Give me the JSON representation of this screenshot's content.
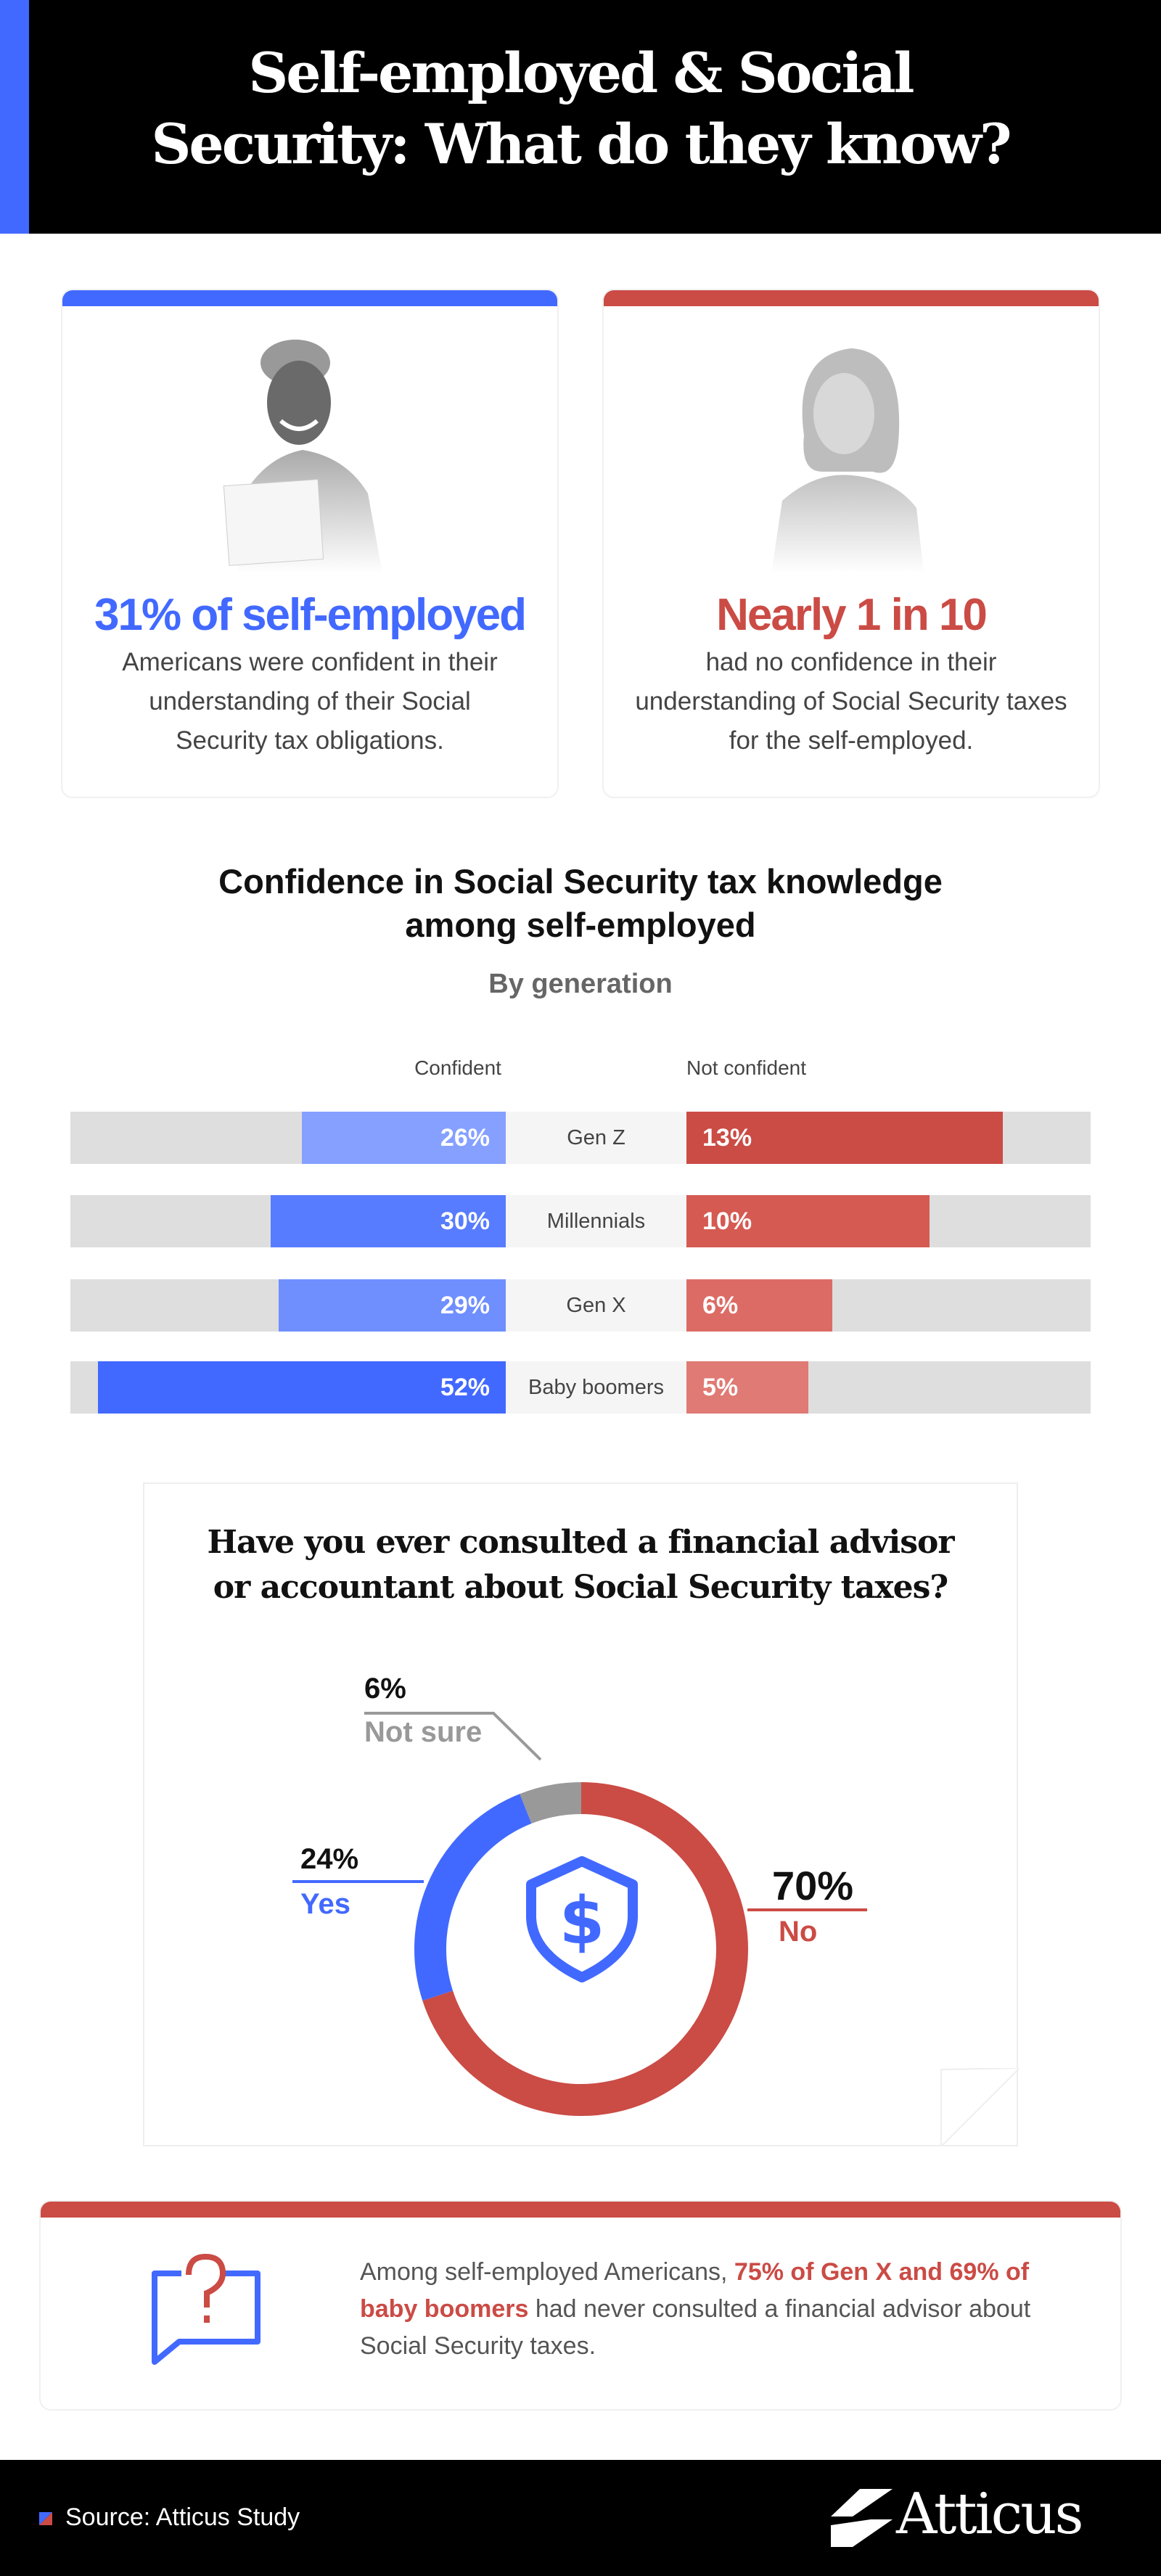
{
  "header": {
    "title_line1": "Self-employed & Social",
    "title_line2": "Security: What do they know?"
  },
  "cards": [
    {
      "stat": "31% of self-employed",
      "lines": [
        "Americans were confident in their",
        "understanding of their Social",
        "Security tax obligations."
      ],
      "color": "#4269ff"
    },
    {
      "stat": "Nearly 1 in 10",
      "lines": [
        "had no confidence in their",
        "understanding of Social Security taxes",
        "for the self-employed."
      ],
      "color": "#cb4b45"
    }
  ],
  "chart_data": [
    {
      "type": "bar",
      "title": "Confidence in Social Security tax knowledge among self-employed",
      "subtitle": "By generation",
      "categories": [
        "Gen Z",
        "Millennials",
        "Gen X",
        "Baby boomers"
      ],
      "series": [
        {
          "name": "Confident",
          "values": [
            26,
            30,
            29,
            52
          ],
          "labels": [
            "26%",
            "30%",
            "29%",
            "52%"
          ],
          "colors": [
            "#85a0ff",
            "#587cff",
            "#6f8fff",
            "#4269ff"
          ]
        },
        {
          "name": "Not confident",
          "values": [
            13,
            10,
            6,
            5
          ],
          "labels": [
            "13%",
            "10%",
            "6%",
            "5%"
          ],
          "colors": [
            "#cb4b45",
            "#d55a52",
            "#dc6b65",
            "#e07a74"
          ]
        }
      ]
    },
    {
      "type": "pie",
      "title": "Have you ever consulted a financial advisor or accountant about Social Security taxes?",
      "title_line1": "Have you ever consulted a financial advisor",
      "title_line2": "or accountant about Social Security taxes?",
      "slices": [
        {
          "name": "No",
          "value": 70,
          "label": "70%",
          "color": "#cb4b45"
        },
        {
          "name": "Yes",
          "value": 24,
          "label": "24%",
          "color": "#4269ff"
        },
        {
          "name": "Not sure",
          "value": 6,
          "label": "6%",
          "color": "#999999"
        }
      ]
    }
  ],
  "insight": {
    "before": "Among self-employed Americans, ",
    "highlight": "75% of Gen X and 69% of baby boomers",
    "after": " had never consulted a financial advisor about Social Security taxes."
  },
  "footer": {
    "source": "Source: Atticus Study",
    "logo": "Atticus"
  }
}
